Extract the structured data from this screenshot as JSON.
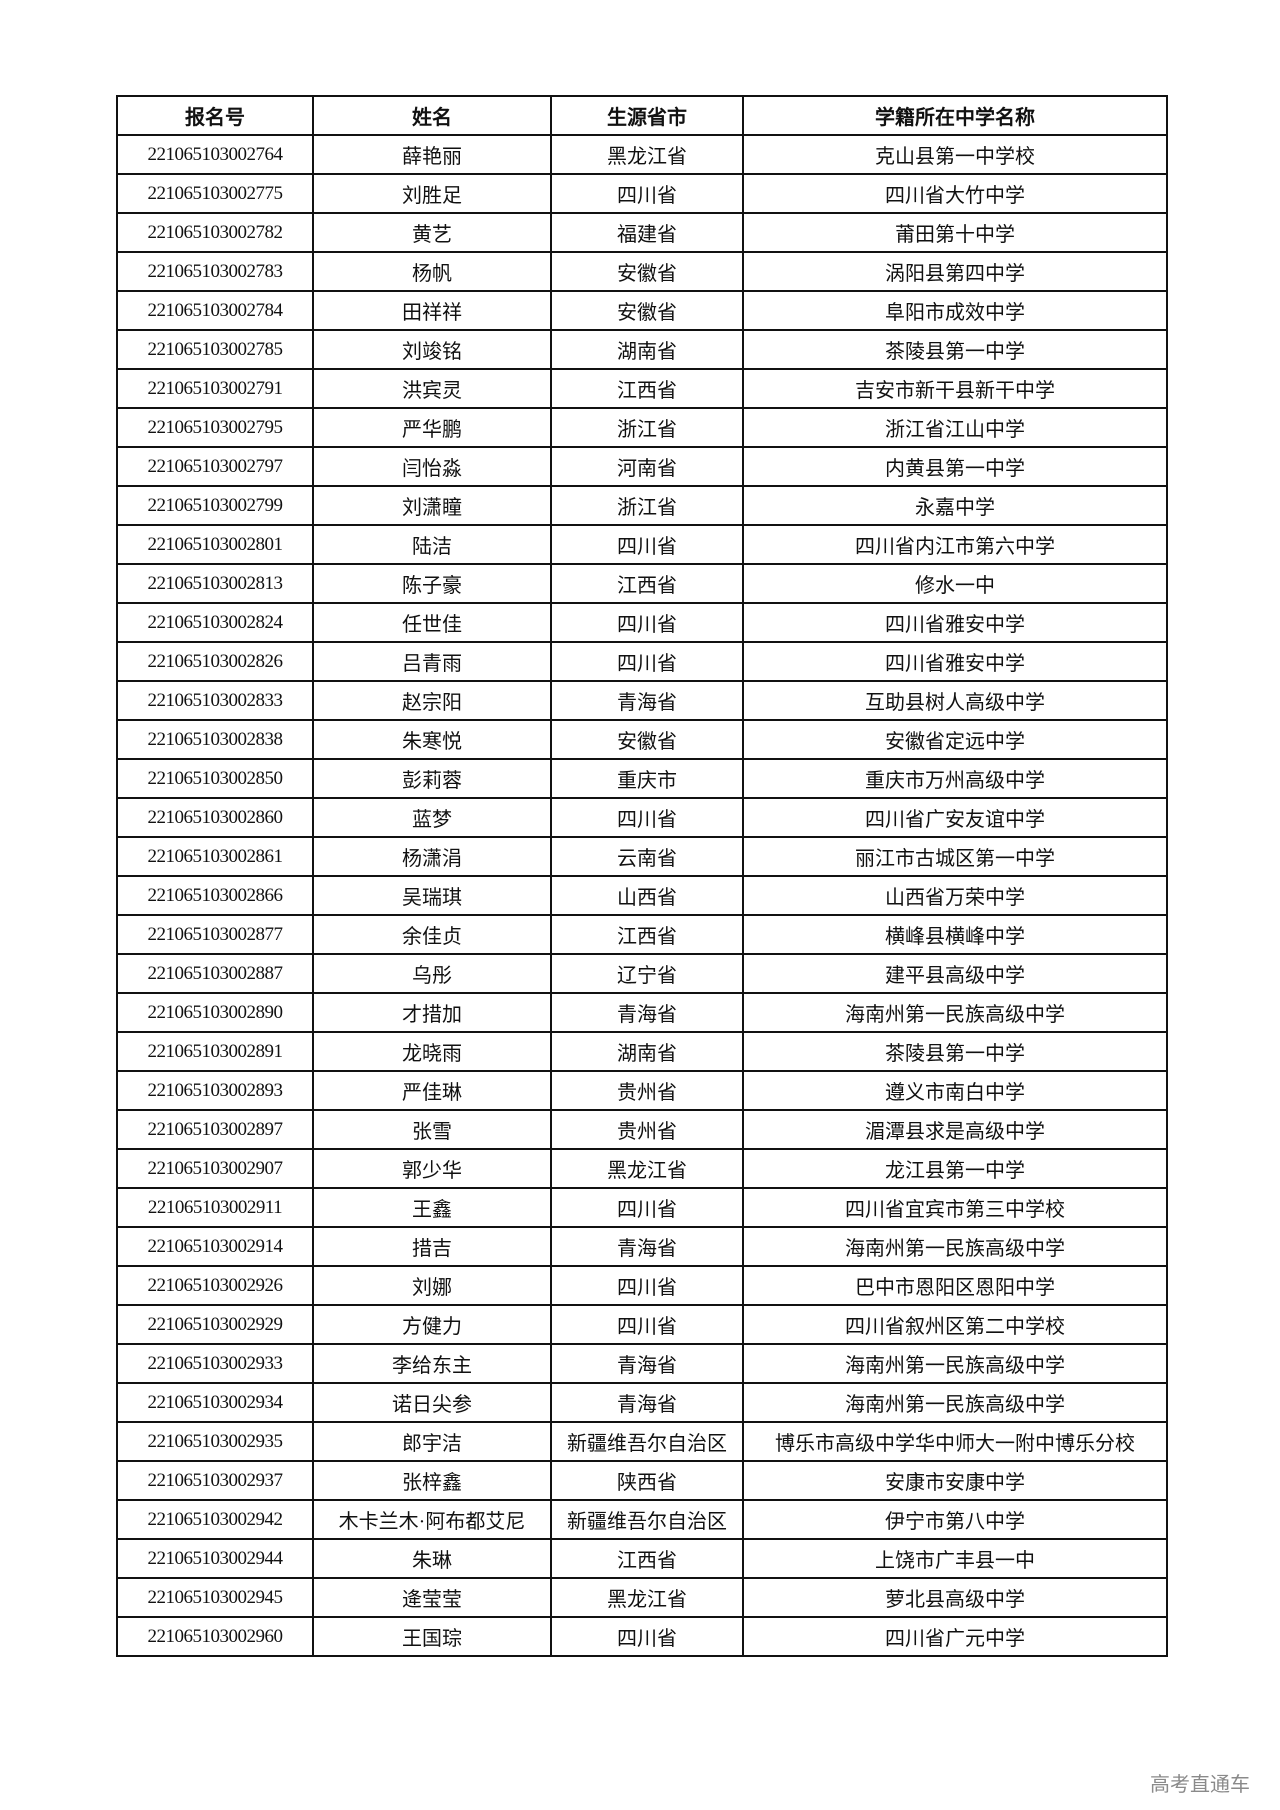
{
  "table": {
    "headers": [
      "报名号",
      "姓名",
      "生源省市",
      "学籍所在中学名称"
    ],
    "rows": [
      [
        "221065103002764",
        "薛艳丽",
        "黑龙江省",
        "克山县第一中学校"
      ],
      [
        "221065103002775",
        "刘胜足",
        "四川省",
        "四川省大竹中学"
      ],
      [
        "221065103002782",
        "黄艺",
        "福建省",
        "莆田第十中学"
      ],
      [
        "221065103002783",
        "杨帆",
        "安徽省",
        "涡阳县第四中学"
      ],
      [
        "221065103002784",
        "田祥祥",
        "安徽省",
        "阜阳市成效中学"
      ],
      [
        "221065103002785",
        "刘竣铭",
        "湖南省",
        "茶陵县第一中学"
      ],
      [
        "221065103002791",
        "洪宾灵",
        "江西省",
        "吉安市新干县新干中学"
      ],
      [
        "221065103002795",
        "严华鹏",
        "浙江省",
        "浙江省江山中学"
      ],
      [
        "221065103002797",
        "闫怡淼",
        "河南省",
        "内黄县第一中学"
      ],
      [
        "221065103002799",
        "刘潇瞳",
        "浙江省",
        "永嘉中学"
      ],
      [
        "221065103002801",
        "陆洁",
        "四川省",
        "四川省内江市第六中学"
      ],
      [
        "221065103002813",
        "陈子豪",
        "江西省",
        "修水一中"
      ],
      [
        "221065103002824",
        "任世佳",
        "四川省",
        "四川省雅安中学"
      ],
      [
        "221065103002826",
        "吕青雨",
        "四川省",
        "四川省雅安中学"
      ],
      [
        "221065103002833",
        "赵宗阳",
        "青海省",
        "互助县树人高级中学"
      ],
      [
        "221065103002838",
        "朱寒悦",
        "安徽省",
        "安徽省定远中学"
      ],
      [
        "221065103002850",
        "彭莉蓉",
        "重庆市",
        "重庆市万州高级中学"
      ],
      [
        "221065103002860",
        "蓝梦",
        "四川省",
        "四川省广安友谊中学"
      ],
      [
        "221065103002861",
        "杨潇涓",
        "云南省",
        "丽江市古城区第一中学"
      ],
      [
        "221065103002866",
        "吴瑞琪",
        "山西省",
        "山西省万荣中学"
      ],
      [
        "221065103002877",
        "余佳贞",
        "江西省",
        "横峰县横峰中学"
      ],
      [
        "221065103002887",
        "乌彤",
        "辽宁省",
        "建平县高级中学"
      ],
      [
        "221065103002890",
        "才措加",
        "青海省",
        "海南州第一民族高级中学"
      ],
      [
        "221065103002891",
        "龙晓雨",
        "湖南省",
        "茶陵县第一中学"
      ],
      [
        "221065103002893",
        "严佳琳",
        "贵州省",
        "遵义市南白中学"
      ],
      [
        "221065103002897",
        "张雪",
        "贵州省",
        "湄潭县求是高级中学"
      ],
      [
        "221065103002907",
        "郭少华",
        "黑龙江省",
        "龙江县第一中学"
      ],
      [
        "221065103002911",
        "王鑫",
        "四川省",
        "四川省宜宾市第三中学校"
      ],
      [
        "221065103002914",
        "措吉",
        "青海省",
        "海南州第一民族高级中学"
      ],
      [
        "221065103002926",
        "刘娜",
        "四川省",
        "巴中市恩阳区恩阳中学"
      ],
      [
        "221065103002929",
        "方健力",
        "四川省",
        "四川省叙州区第二中学校"
      ],
      [
        "221065103002933",
        "李给东主",
        "青海省",
        "海南州第一民族高级中学"
      ],
      [
        "221065103002934",
        "诺日尖参",
        "青海省",
        "海南州第一民族高级中学"
      ],
      [
        "221065103002935",
        "郎宇洁",
        "新疆维吾尔自治区",
        "博乐市高级中学华中师大一附中博乐分校"
      ],
      [
        "221065103002937",
        "张梓鑫",
        "陕西省",
        "安康市安康中学"
      ],
      [
        "221065103002942",
        "木卡兰木·阿布都艾尼",
        "新疆维吾尔自治区",
        "伊宁市第八中学"
      ],
      [
        "221065103002944",
        "朱琳",
        "江西省",
        "上饶市广丰县一中"
      ],
      [
        "221065103002945",
        "逄莹莹",
        "黑龙江省",
        "萝北县高级中学"
      ],
      [
        "221065103002960",
        "王国琮",
        "四川省",
        "四川省广元中学"
      ]
    ]
  },
  "watermark": "高考直通车"
}
